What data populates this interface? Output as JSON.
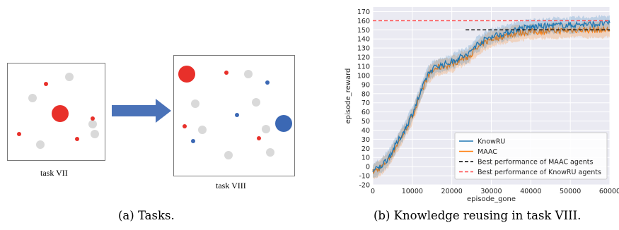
{
  "left_panel": {
    "task_a_label": "task VII",
    "task_b_label": "task VIII",
    "caption": "(a) Tasks.",
    "colors": {
      "red": "#e8302a",
      "blue": "#3b68b4",
      "gray": "#d9d9d9",
      "arrow": "#4a72b8"
    }
  },
  "right_caption": "(b) Knowledge reusing in task VIII.",
  "chart_data": {
    "type": "line",
    "xlabel": "episode_gone",
    "ylabel": "episode_reward",
    "xlim": [
      0,
      60000
    ],
    "ylim": [
      -20,
      175
    ],
    "xticks": [
      0,
      10000,
      20000,
      30000,
      40000,
      50000,
      60000
    ],
    "yticks": [
      -20,
      -10,
      0,
      10,
      20,
      30,
      40,
      50,
      60,
      70,
      80,
      90,
      100,
      110,
      120,
      130,
      140,
      150,
      160,
      170
    ],
    "grid": true,
    "background": "#eaeaf2",
    "legend_position": "lower-right",
    "series": [
      {
        "name": "KnowRU",
        "color": "#1f77b4",
        "x": [
          0,
          2000,
          4000,
          6000,
          8000,
          10000,
          12000,
          14000,
          16000,
          18000,
          20000,
          22000,
          24000,
          26000,
          28000,
          30000,
          32000,
          34000,
          36000,
          38000,
          40000,
          42000,
          44000,
          46000,
          48000,
          50000,
          52000,
          54000,
          56000,
          58000,
          60000
        ],
        "y": [
          -5,
          0,
          10,
          25,
          40,
          58,
          80,
          102,
          110,
          112,
          115,
          120,
          122,
          133,
          138,
          143,
          145,
          147,
          150,
          152,
          153,
          154,
          154,
          155,
          155,
          155,
          156,
          156,
          156,
          157,
          157
        ]
      },
      {
        "name": "MAAC",
        "color": "#ff7f0e",
        "x": [
          0,
          2000,
          4000,
          6000,
          8000,
          10000,
          12000,
          14000,
          16000,
          18000,
          20000,
          22000,
          24000,
          26000,
          28000,
          30000,
          32000,
          34000,
          36000,
          38000,
          40000,
          42000,
          44000,
          46000,
          48000,
          50000,
          52000,
          54000,
          56000,
          58000,
          60000
        ],
        "y": [
          -6,
          -1,
          8,
          23,
          38,
          55,
          78,
          100,
          108,
          110,
          112,
          117,
          120,
          128,
          135,
          140,
          142,
          144,
          146,
          147,
          148,
          148,
          149,
          149,
          149,
          150,
          150,
          150,
          150,
          150,
          150
        ]
      }
    ],
    "reference_lines": [
      {
        "name": "Best performance of MAAC agents",
        "y": 150,
        "color": "#000000",
        "x_start": 23500
      },
      {
        "name": "Best performance of KnowRU agents",
        "y": 160,
        "color": "#ff4b4b",
        "x_start": 0
      }
    ],
    "legend": [
      "KnowRU",
      "MAAC",
      "Best performance of MAAC agents",
      "Best performance of KnowRU agents"
    ]
  }
}
